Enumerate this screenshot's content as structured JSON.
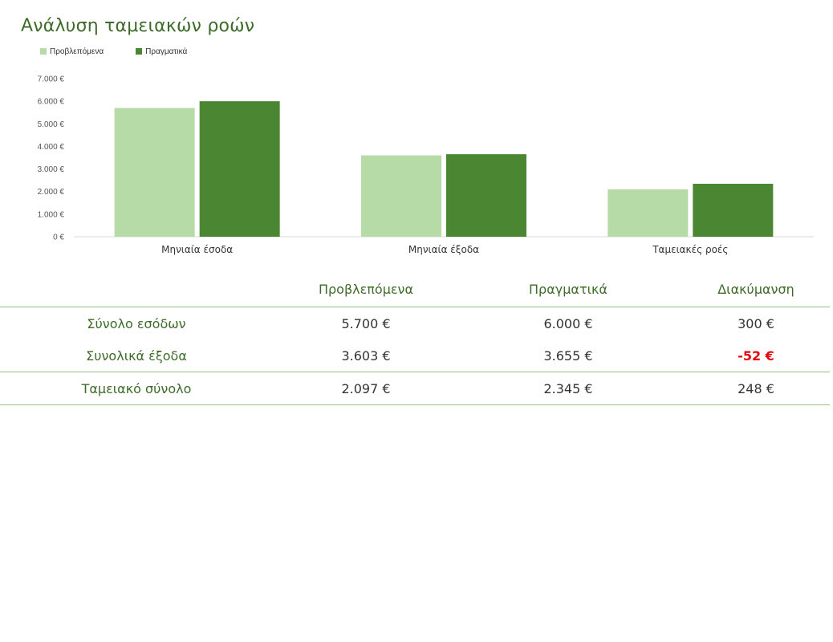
{
  "chart_data": {
    "type": "bar",
    "title": "Ανάλυση ταμειακών ροών",
    "categories": [
      "Μηνιαία έσοδα",
      "Μηνιαία έξοδα",
      "Ταμειακές ροές"
    ],
    "series": [
      {
        "name": "Προβλεπόμενα",
        "values": [
          5700,
          3603,
          2097
        ],
        "color": "#b6dba6"
      },
      {
        "name": "Πραγματικά",
        "values": [
          6000,
          3655,
          2345
        ],
        "color": "#4b8733"
      }
    ],
    "ylim": [
      0,
      7000
    ],
    "yticks": [
      0,
      1000,
      2000,
      3000,
      4000,
      5000,
      6000,
      7000
    ],
    "ytick_labels": [
      "0 €",
      "1.000 €",
      "2.000 €",
      "3.000 €",
      "4.000 €",
      "5.000 €",
      "6.000 €",
      "7.000 €"
    ],
    "grid": false,
    "legend_position": "top-left"
  },
  "summary": {
    "headers": [
      "Προβλεπόμενα",
      "Πραγματικά",
      "Διακύμανση"
    ],
    "rows": [
      {
        "label": "Σύνολο εσόδων",
        "forecast": "5.700 €",
        "actual": "6.000 €",
        "variance": "300 €"
      },
      {
        "label": "Συνολικά έξοδα",
        "forecast": "3.603 €",
        "actual": "3.655 €",
        "variance": "-52 €"
      },
      {
        "label": "Ταμειακό σύνολο",
        "forecast": "2.097 €",
        "actual": "2.345 €",
        "variance": "248 €"
      }
    ]
  },
  "colors": {
    "title": "#3e6b2a",
    "table_line": "#92c47d",
    "negative": "#e8000b"
  }
}
